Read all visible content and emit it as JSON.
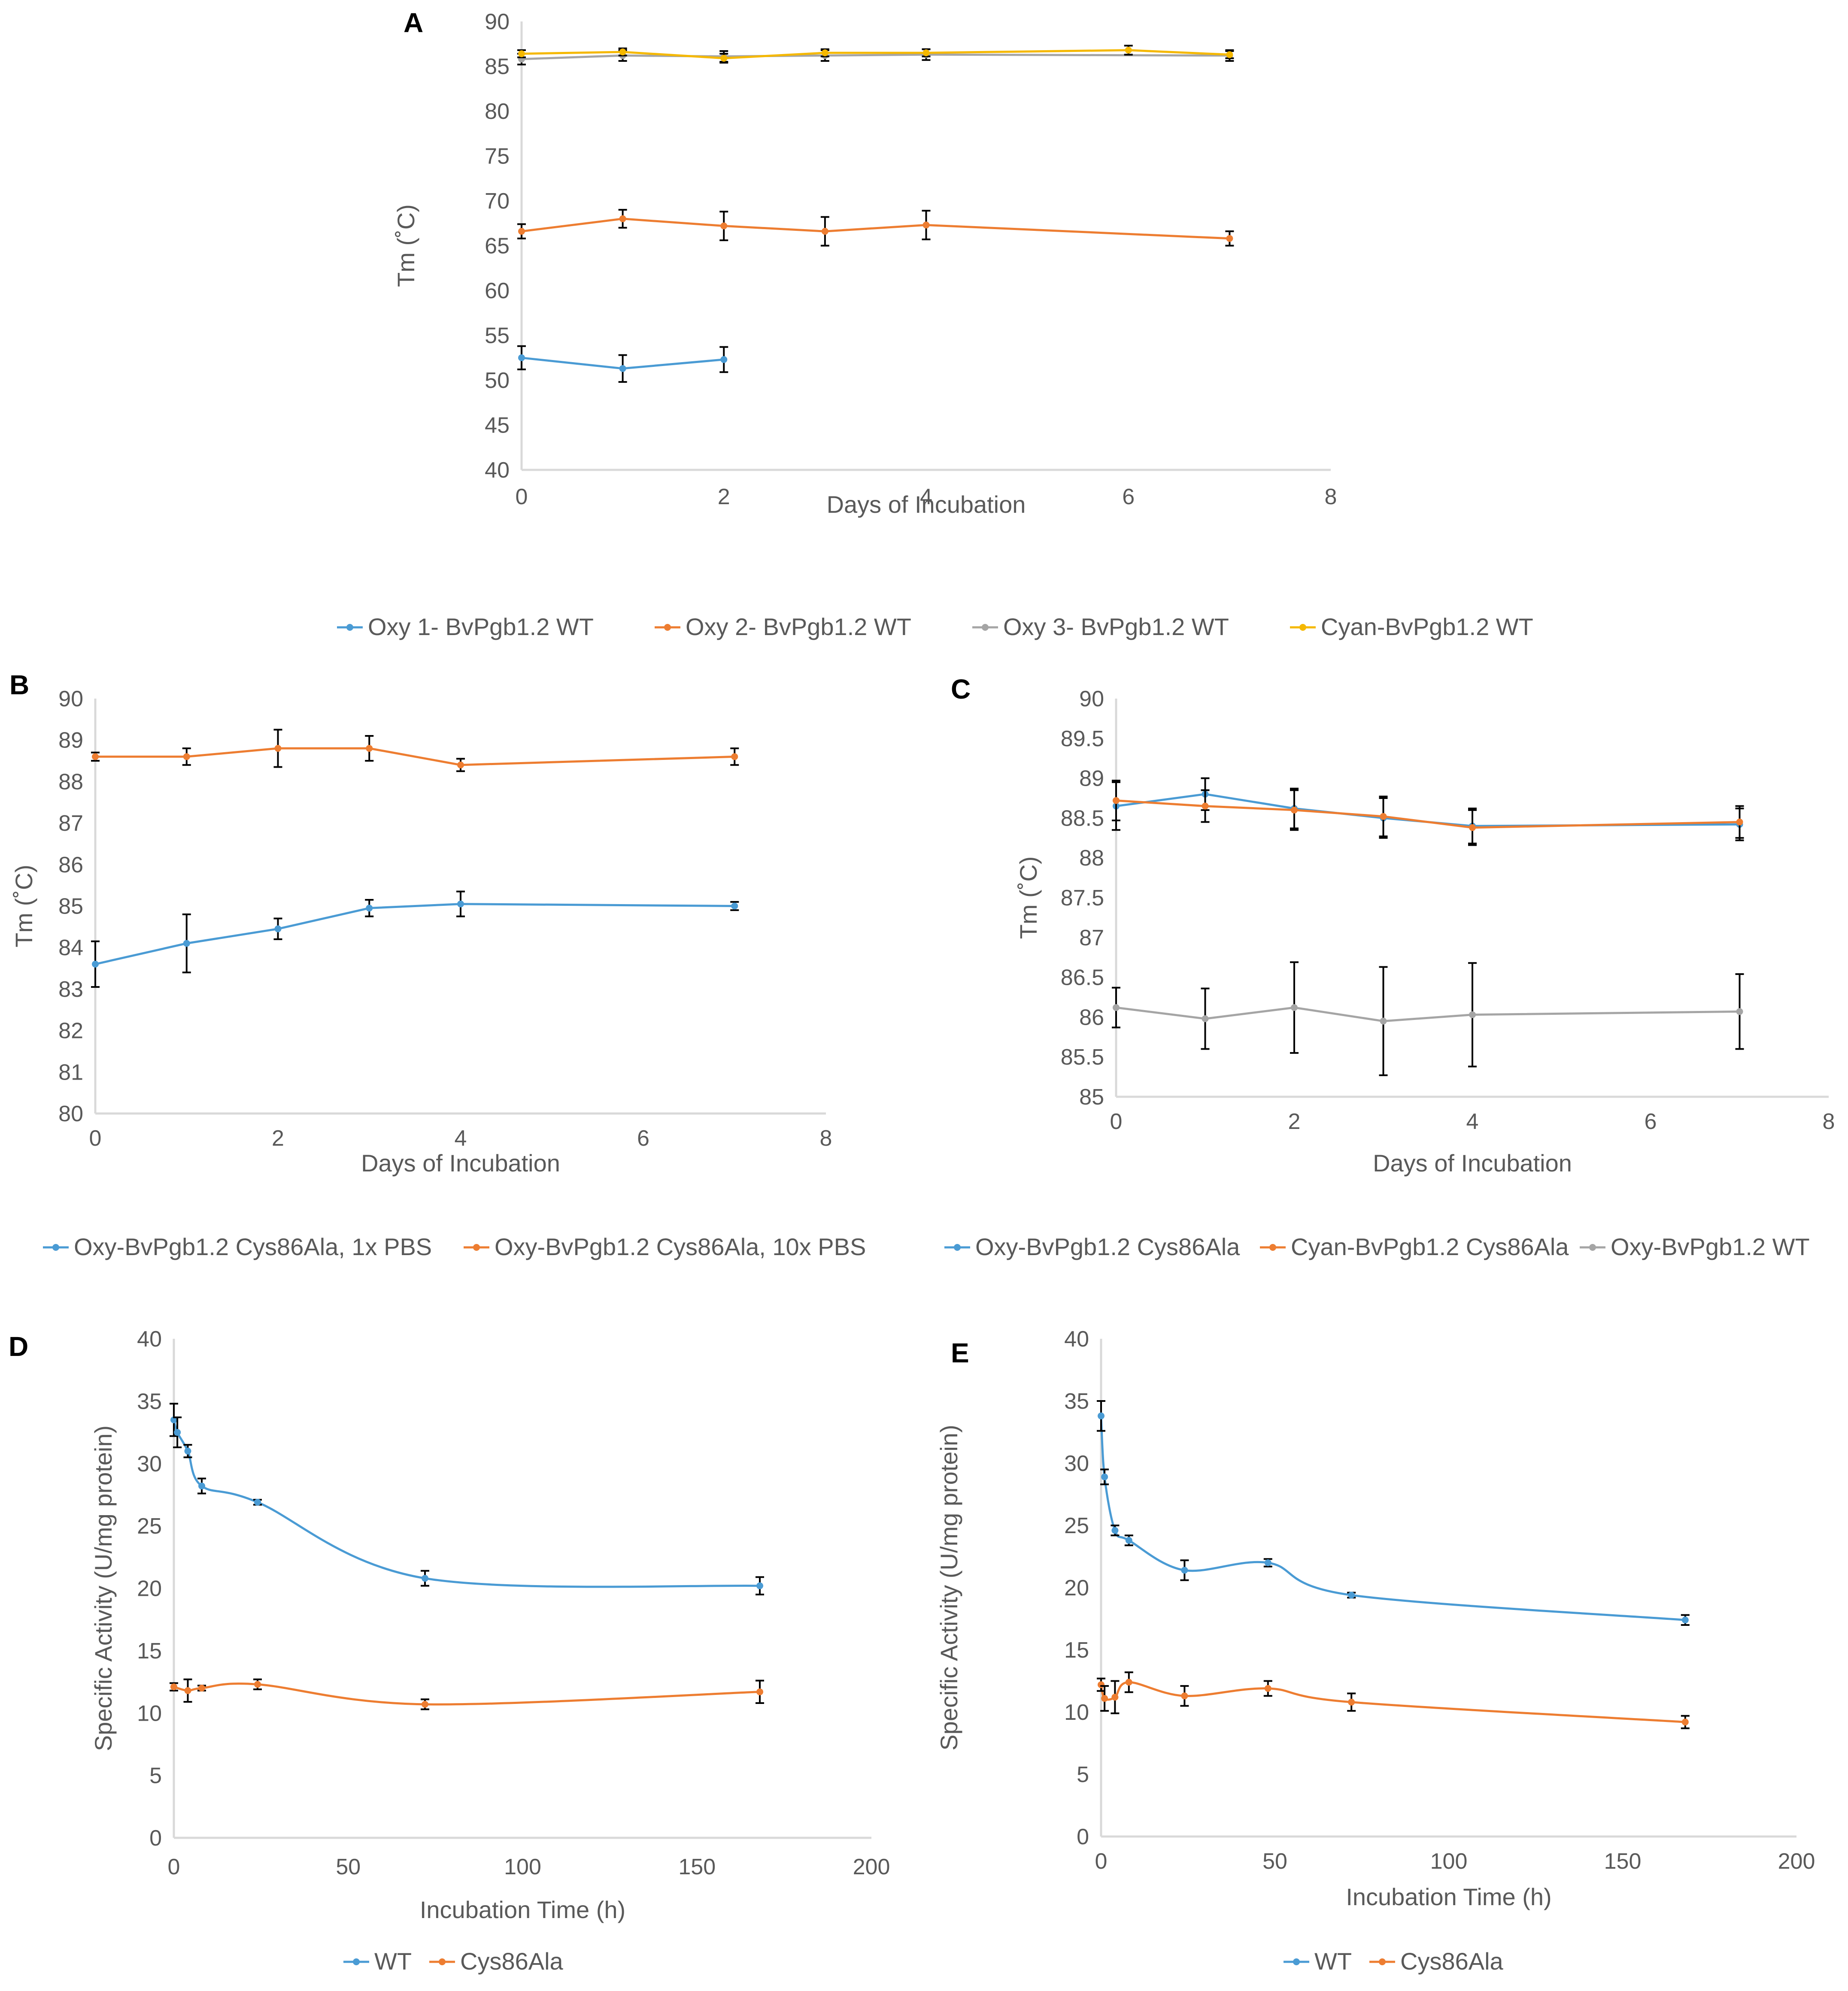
{
  "chart_data": [
    {
      "panel": "A",
      "type": "line",
      "xlabel": "Days of Incubation",
      "ylabel": "Tm (˚C)",
      "xlim": [
        0,
        8
      ],
      "xticks": [
        0,
        2,
        4,
        6,
        8
      ],
      "ylim": [
        40,
        90
      ],
      "yticks": [
        40,
        45,
        50,
        55,
        60,
        65,
        70,
        75,
        80,
        85,
        90
      ],
      "smooth": false,
      "series": [
        {
          "name": "Oxy 1- BvPgb1.2 WT",
          "color": "#4a9bd4",
          "x": [
            0,
            1,
            2
          ],
          "y": [
            52.5,
            51.3,
            52.3
          ],
          "err": [
            1.3,
            1.5,
            1.4
          ]
        },
        {
          "name": "Oxy 2- BvPgb1.2 WT",
          "color": "#ed7d31",
          "x": [
            0,
            1,
            2,
            3,
            4,
            7
          ],
          "y": [
            66.6,
            68.0,
            67.2,
            66.6,
            67.3,
            65.8
          ],
          "err": [
            0.8,
            1.0,
            1.6,
            1.6,
            1.6,
            0.8
          ]
        },
        {
          "name": "Oxy 3- BvPgb1.2 WT",
          "color": "#a5a5a5",
          "x": [
            0,
            1,
            2,
            3,
            4,
            7
          ],
          "y": [
            85.8,
            86.2,
            86.1,
            86.2,
            86.3,
            86.2
          ],
          "err": [
            0.6,
            0.6,
            0.6,
            0.6,
            0.6,
            0.6
          ]
        },
        {
          "name": "Cyan-BvPgb1.2 WT",
          "color": "#f5b800",
          "x": [
            0,
            1,
            2,
            3,
            4,
            6,
            7
          ],
          "y": [
            86.4,
            86.6,
            85.9,
            86.5,
            86.5,
            86.8,
            86.3
          ],
          "err": [
            0.4,
            0.4,
            0.5,
            0.4,
            0.4,
            0.5,
            0.4
          ]
        }
      ]
    },
    {
      "panel": "B",
      "type": "line",
      "xlabel": "Days of Incubation",
      "ylabel": "Tm (˚C)",
      "xlim": [
        0,
        8
      ],
      "xticks": [
        0,
        2,
        4,
        6,
        8
      ],
      "ylim": [
        80,
        90
      ],
      "yticks": [
        80,
        81,
        82,
        83,
        84,
        85,
        86,
        87,
        88,
        89,
        90
      ],
      "smooth": false,
      "series": [
        {
          "name": "Oxy-BvPgb1.2 Cys86Ala, 1x PBS",
          "color": "#4a9bd4",
          "x": [
            0,
            1,
            2,
            3,
            4,
            7
          ],
          "y": [
            83.6,
            84.1,
            84.45,
            84.95,
            85.05,
            85.0
          ],
          "err": [
            0.55,
            0.7,
            0.25,
            0.2,
            0.3,
            0.1
          ]
        },
        {
          "name": "Oxy-BvPgb1.2 Cys86Ala, 10x PBS",
          "color": "#ed7d31",
          "x": [
            0,
            1,
            2,
            3,
            4,
            7
          ],
          "y": [
            88.6,
            88.6,
            88.8,
            88.8,
            88.4,
            88.6
          ],
          "err": [
            0.1,
            0.2,
            0.45,
            0.3,
            0.15,
            0.2
          ]
        }
      ]
    },
    {
      "panel": "C",
      "type": "line",
      "xlabel": "Days of Incubation",
      "ylabel": "Tm (˚C)",
      "xlim": [
        0,
        8
      ],
      "xticks": [
        0,
        2,
        4,
        6,
        8
      ],
      "ylim": [
        85,
        90
      ],
      "yticks": [
        85,
        85.5,
        86,
        86.5,
        87,
        87.5,
        88,
        88.5,
        89,
        89.5,
        90
      ],
      "smooth": false,
      "series": [
        {
          "name": "Oxy-BvPgb1.2 Cys86Ala",
          "color": "#4a9bd4",
          "x": [
            0,
            1,
            2,
            3,
            4,
            7
          ],
          "y": [
            88.65,
            88.8,
            88.62,
            88.5,
            88.4,
            88.42
          ],
          "err": [
            0.3,
            0.2,
            0.25,
            0.25,
            0.22,
            0.2
          ]
        },
        {
          "name": "Cyan-BvPgb1.2 Cys86Ala",
          "color": "#ed7d31",
          "x": [
            0,
            1,
            2,
            3,
            4,
            7
          ],
          "y": [
            88.72,
            88.65,
            88.6,
            88.52,
            88.38,
            88.45
          ],
          "err": [
            0.25,
            0.2,
            0.25,
            0.25,
            0.22,
            0.2
          ]
        },
        {
          "name": "Oxy-BvPgb1.2 WT",
          "color": "#a5a5a5",
          "x": [
            0,
            1,
            2,
            3,
            4,
            7
          ],
          "y": [
            86.12,
            85.98,
            86.12,
            85.95,
            86.03,
            86.07
          ],
          "err": [
            0.25,
            0.38,
            0.57,
            0.68,
            0.65,
            0.47
          ]
        }
      ]
    },
    {
      "panel": "D",
      "type": "line",
      "xlabel": "Incubation Time (h)",
      "ylabel": "Specific Activity (U/mg protein)",
      "xlim": [
        0,
        200
      ],
      "xticks": [
        0,
        50,
        100,
        150,
        200
      ],
      "ylim": [
        0,
        40
      ],
      "yticks": [
        0,
        5,
        10,
        15,
        20,
        25,
        30,
        35,
        40
      ],
      "smooth": true,
      "series": [
        {
          "name": "WT",
          "color": "#4a9bd4",
          "x": [
            0,
            1,
            4,
            8,
            24,
            72,
            168
          ],
          "y": [
            33.5,
            32.5,
            31.0,
            28.2,
            26.9,
            20.8,
            20.2
          ],
          "err": [
            1.3,
            1.2,
            0.5,
            0.6,
            0.2,
            0.6,
            0.7
          ]
        },
        {
          "name": "Cys86Ala",
          "color": "#ed7d31",
          "x": [
            0,
            4,
            8,
            24,
            72,
            168
          ],
          "y": [
            12.1,
            11.8,
            12.0,
            12.3,
            10.7,
            11.7
          ],
          "err": [
            0.3,
            0.9,
            0.2,
            0.4,
            0.4,
            0.9
          ]
        }
      ]
    },
    {
      "panel": "E",
      "type": "line",
      "xlabel": "Incubation Time (h)",
      "ylabel": "Specific Activity (U/mg protein)",
      "xlim": [
        0,
        200
      ],
      "xticks": [
        0,
        50,
        100,
        150,
        200
      ],
      "ylim": [
        0,
        40
      ],
      "yticks": [
        0,
        5,
        10,
        15,
        20,
        25,
        30,
        35,
        40
      ],
      "smooth": true,
      "series": [
        {
          "name": "WT",
          "color": "#4a9bd4",
          "x": [
            0,
            1,
            4,
            8,
            24,
            48,
            72,
            168
          ],
          "y": [
            33.8,
            28.9,
            24.6,
            23.8,
            21.4,
            22.0,
            19.4,
            17.4
          ],
          "err": [
            1.2,
            0.6,
            0.4,
            0.4,
            0.8,
            0.3,
            0.2,
            0.4
          ]
        },
        {
          "name": "Cys86Ala",
          "color": "#ed7d31",
          "x": [
            0,
            1,
            4,
            8,
            24,
            48,
            72,
            168
          ],
          "y": [
            12.2,
            11.1,
            11.2,
            12.4,
            11.3,
            11.9,
            10.8,
            9.2
          ],
          "err": [
            0.5,
            1.0,
            1.3,
            0.8,
            0.8,
            0.6,
            0.7,
            0.5
          ]
        }
      ]
    }
  ]
}
